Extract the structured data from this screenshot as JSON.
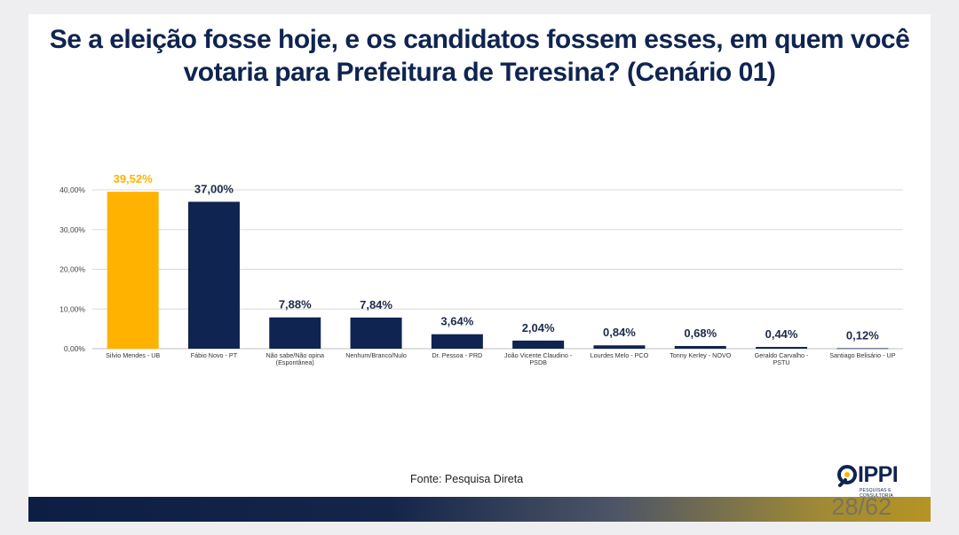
{
  "title_lines": [
    "Se a eleição fosse hoje, e os candidatos fossem esses, em quem você",
    "votaria para Prefeitura de Teresina? (Cenário 01)"
  ],
  "source": "Fonte: Pesquisa Direta",
  "logo": {
    "name": "IPPI",
    "tagline": "PESQUISAS E CONSULTORIA"
  },
  "page_indicator": "28/62",
  "colors": {
    "highlight": "#ffb300",
    "bar": "#0f2450",
    "title": "#0f2450",
    "grid": "#d9d9d9"
  },
  "chart_data": {
    "type": "bar",
    "categories": [
      [
        "Silvio Mendes - UB"
      ],
      [
        "Fábio Novo - PT"
      ],
      [
        "Não sabe/Não opina",
        "(Espontânea)"
      ],
      [
        "Nenhum/Branco/Nulo"
      ],
      [
        "Dr. Pessoa - PRD"
      ],
      [
        "João Vicente Claudino -",
        "PSDB"
      ],
      [
        "Lourdes Melo - PCO"
      ],
      [
        "Tonny Kerley - NOVO"
      ],
      [
        "Geraldo Carvalho -",
        "PSTU"
      ],
      [
        "Santiago Belisário - UP"
      ]
    ],
    "values": [
      39.52,
      37.0,
      7.88,
      7.84,
      3.64,
      2.04,
      0.84,
      0.68,
      0.44,
      0.12
    ],
    "value_labels": [
      "39,52%",
      "37,00%",
      "7,88%",
      "7,84%",
      "3,64%",
      "2,04%",
      "0,84%",
      "0,68%",
      "0,44%",
      "0,12%"
    ],
    "highlight_index": 0,
    "yticks": [
      0,
      10,
      20,
      30,
      40
    ],
    "ytick_labels": [
      "0,00%",
      "10,00%",
      "20,00%",
      "30,00%",
      "40,00%"
    ],
    "ylim": [
      0,
      40
    ],
    "grid": true,
    "legend": "none"
  }
}
